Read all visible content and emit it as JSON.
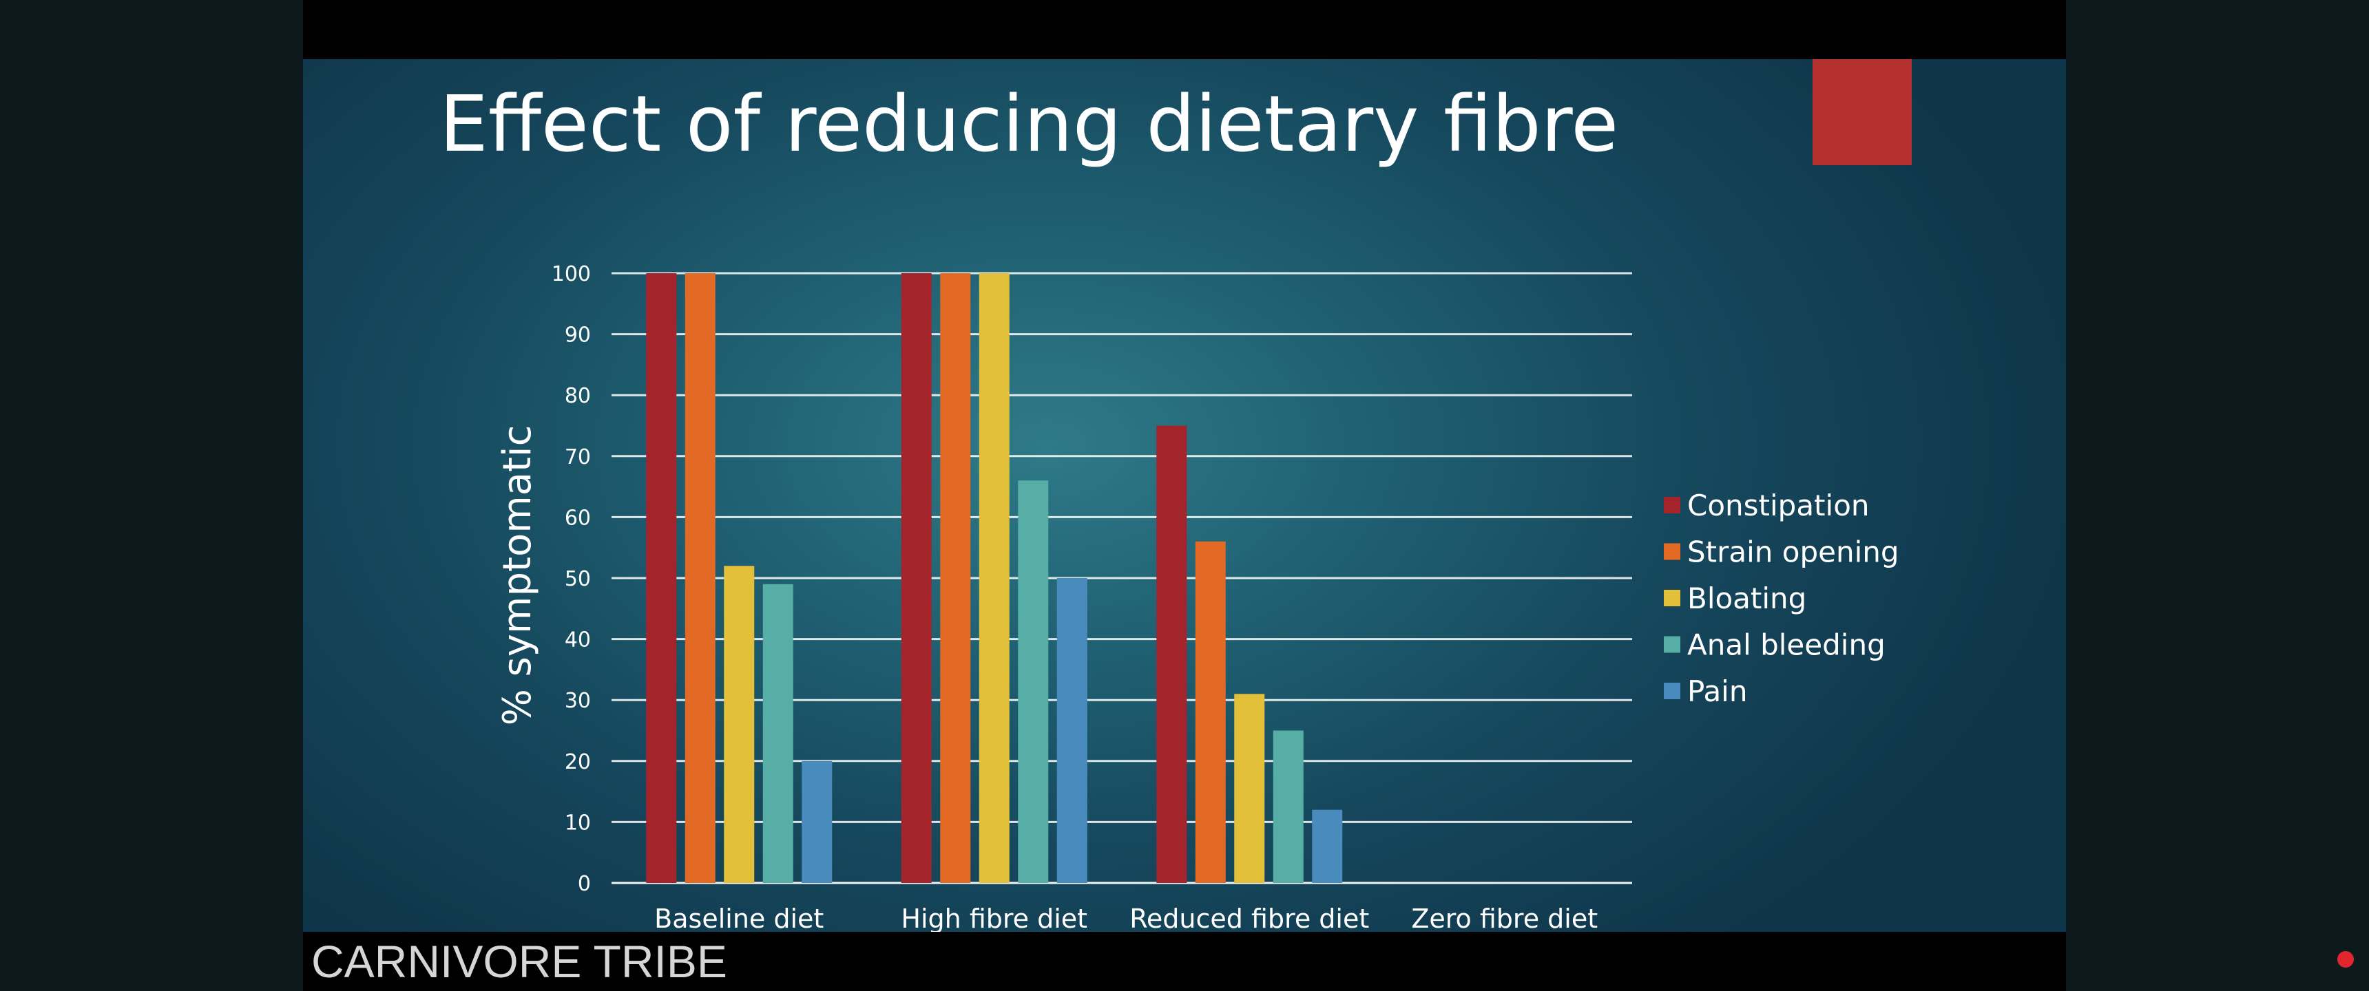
{
  "slide": {
    "title": "Effect of reducing dietary fibre"
  },
  "watermark": {
    "channel": "CARNIVORE TRIBE"
  },
  "icons": {
    "corner": "record-dot-icon"
  },
  "colors": {
    "background": "#1f6072",
    "accent_square": "#b3302f",
    "gridline": "#ffffff"
  },
  "chart_data": {
    "type": "bar",
    "title": "",
    "xlabel": "",
    "ylabel": "% symptomatic",
    "ylim": [
      0,
      100
    ],
    "yticks": [
      0,
      10,
      20,
      30,
      40,
      50,
      60,
      70,
      80,
      90,
      100
    ],
    "grid": true,
    "legend_position": "right",
    "categories": [
      "Baseline diet",
      "High fibre diet",
      "Reduced fibre diet",
      "Zero fibre diet"
    ],
    "series": [
      {
        "name": "Constipation",
        "color": "#a3242b",
        "values": [
          100,
          100,
          75,
          0
        ]
      },
      {
        "name": "Strain opening",
        "color": "#e26a25",
        "values": [
          100,
          100,
          56,
          0
        ]
      },
      {
        "name": "Bloating",
        "color": "#e3c03a",
        "values": [
          52,
          100,
          31,
          0
        ]
      },
      {
        "name": "Anal bleeding",
        "color": "#57aea7",
        "values": [
          49,
          66,
          25,
          0
        ]
      },
      {
        "name": "Pain",
        "color": "#4a8bbd",
        "values": [
          20,
          50,
          12,
          0
        ]
      }
    ]
  }
}
